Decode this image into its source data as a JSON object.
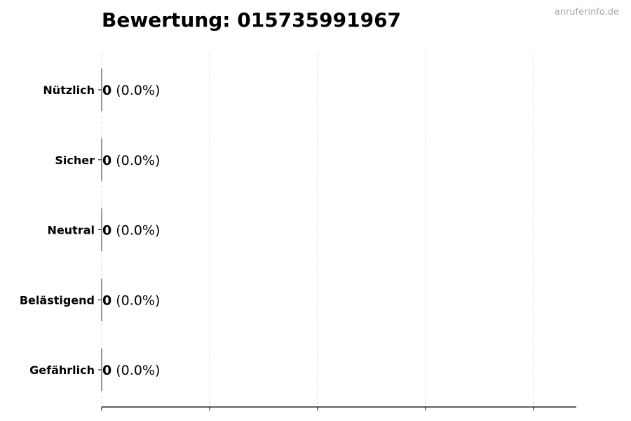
{
  "chart_data": {
    "type": "bar",
    "orientation": "horizontal",
    "title": "Bewertung: 015735991967",
    "categories": [
      "Nützlich",
      "Sicher",
      "Neutral",
      "Belästigend",
      "Gefährlich"
    ],
    "values": [
      0,
      0,
      0,
      0,
      0
    ],
    "percent_labels": [
      "(0.0%)",
      "(0.0%)",
      "(0.0%)",
      "(0.0%)",
      "(0.0%)"
    ],
    "xlabel": "",
    "ylabel": "",
    "x_tick_count": 5,
    "grid": "vertical dashed",
    "colors": {
      "grid": "#dddddd",
      "bar_edge": "#333333",
      "text": "#000000",
      "watermark": "#aaaaaa"
    }
  },
  "watermark": "anruferinfo.de"
}
